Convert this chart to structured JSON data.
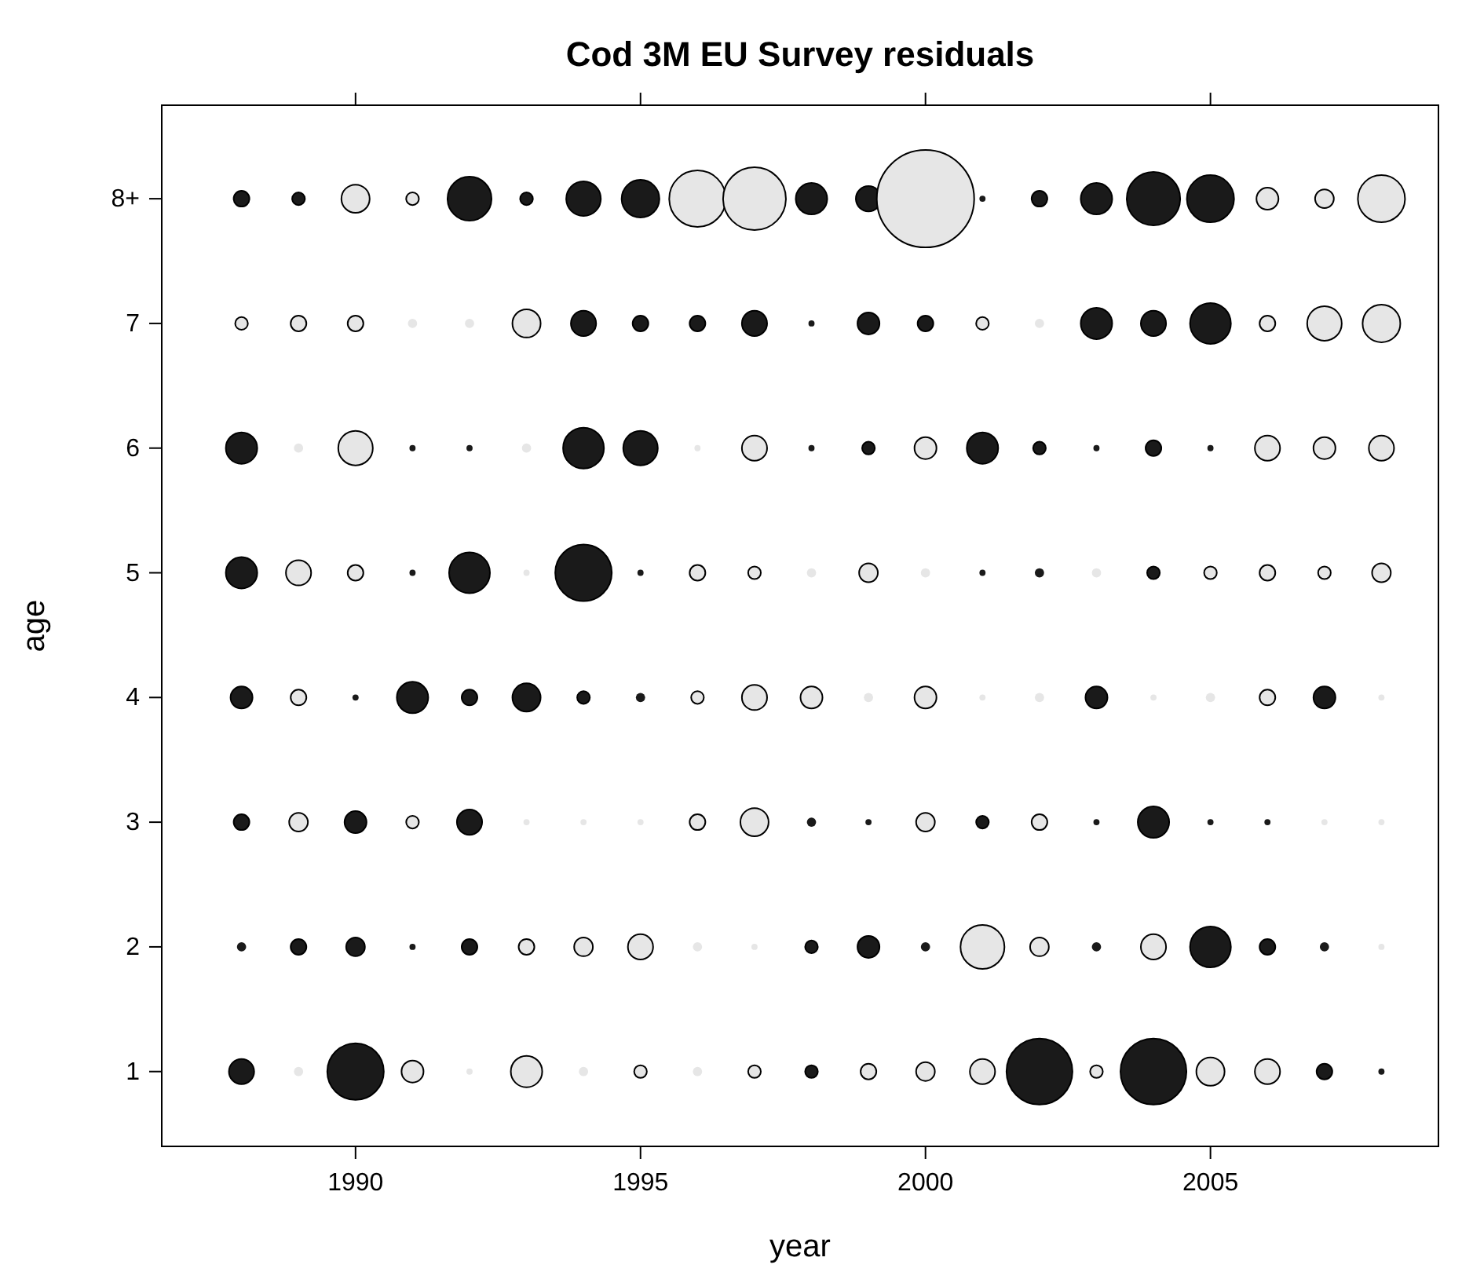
{
  "chart_data": {
    "type": "bubble",
    "title": "Cod 3M EU Survey residuals",
    "xlabel": "year",
    "ylabel": "age",
    "xlim": [
      1986.6,
      2009.0
    ],
    "xticks": [
      1990,
      1995,
      2000,
      2005
    ],
    "ylim": [
      0.4,
      8.75
    ],
    "yticks": [
      1,
      2,
      3,
      4,
      5,
      6,
      7,
      {
        "value": 8,
        "label": "8+"
      }
    ],
    "series": [
      {
        "color": "#1a1a1a",
        "x": [
          1988,
          1989,
          1992,
          1993,
          1994,
          1995,
          1998,
          1999,
          2001,
          2002,
          2003,
          2004,
          2005,
          1994,
          1995,
          1996,
          1997,
          1998,
          1999,
          2000,
          2003,
          2004,
          2005,
          1988,
          1991,
          1992,
          1994,
          1995,
          1998,
          1999,
          2001,
          2002,
          2003,
          2004,
          2005,
          1988,
          1991,
          1992,
          1994,
          1995,
          2001,
          2002,
          2004,
          1988,
          1990,
          1991,
          1992,
          1993,
          1994,
          1995,
          2003,
          2007,
          1988,
          1990,
          1992,
          1998,
          1999,
          2001,
          2003,
          2004,
          2005,
          2006,
          1988,
          1989,
          1990,
          1991,
          1992,
          1998,
          1999,
          2000,
          2003,
          2005,
          2006,
          2007,
          1988,
          1990,
          1998,
          2002,
          2004,
          2007,
          2008
        ],
        "values": [
          8,
          8,
          8,
          8,
          8,
          8,
          8,
          8,
          8,
          8,
          8,
          8,
          8,
          7,
          7,
          7,
          7,
          7,
          7,
          7,
          7,
          7,
          7,
          6,
          6,
          6,
          6,
          6,
          6,
          6,
          6,
          6,
          6,
          6,
          6,
          5,
          5,
          5,
          5,
          5,
          5,
          5,
          5,
          4,
          4,
          4,
          4,
          4,
          4,
          4,
          4,
          4,
          3,
          3,
          3,
          3,
          3,
          3,
          3,
          3,
          3,
          3,
          2,
          2,
          2,
          2,
          2,
          2,
          2,
          2,
          2,
          2,
          2,
          2,
          1,
          1,
          1,
          1,
          1,
          1,
          1
        ],
        "sizes": [
          0.026,
          0.017,
          0.204,
          0.017,
          0.126,
          0.15,
          0.104,
          0.067,
          0.004,
          0.026,
          0.104,
          0.301,
          0.234,
          0.067,
          0.026,
          0.026,
          0.067,
          0.004,
          0.051,
          0.026,
          0.104,
          0.067,
          0.176,
          0.104,
          0.004,
          0.004,
          0.176,
          0.126,
          0.004,
          0.017,
          0.104,
          0.017,
          0.004,
          0.026,
          0.004,
          0.104,
          0.004,
          0.176,
          0.337,
          0.004,
          0.004,
          0.009,
          0.017,
          0.051,
          0.004,
          0.104,
          0.026,
          0.084,
          0.017,
          0.009,
          0.051,
          0.051,
          0.026,
          0.051,
          0.067,
          0.009,
          0.004,
          0.017,
          0.004,
          0.104,
          0.004,
          0.004,
          0.009,
          0.026,
          0.037,
          0.004,
          0.026,
          0.017,
          0.051,
          0.009,
          0.009,
          0.176,
          0.026,
          0.009,
          0.067,
          0.337,
          0.017,
          0.459,
          0.459,
          0.026,
          0.004
        ]
      },
      {
        "color": "#e6e6e6",
        "x": [
          1990,
          1991,
          1996,
          1997,
          2000,
          2006,
          2007,
          2008,
          1988,
          1989,
          1990,
          1991,
          1992,
          1993,
          2001,
          2002,
          2006,
          2007,
          2008,
          1989,
          1990,
          1993,
          1996,
          1997,
          2000,
          2006,
          2007,
          2008,
          1989,
          1990,
          1993,
          1996,
          1997,
          1998,
          1999,
          2000,
          2003,
          2005,
          2006,
          2007,
          2008,
          1989,
          1996,
          1997,
          1998,
          1999,
          2000,
          2001,
          2002,
          2004,
          2005,
          2006,
          2008,
          1989,
          1991,
          1993,
          1994,
          1995,
          1996,
          1997,
          2000,
          2002,
          2007,
          2008,
          1993,
          1994,
          1995,
          1996,
          1997,
          2001,
          2002,
          2004,
          2008,
          1989,
          1991,
          1992,
          1993,
          1994,
          1995,
          1996,
          1997,
          1999,
          2000,
          2001,
          2003,
          2005,
          2006
        ],
        "values": [
          8,
          8,
          8,
          8,
          8,
          8,
          8,
          8,
          7,
          7,
          7,
          7,
          7,
          7,
          7,
          7,
          7,
          7,
          7,
          6,
          6,
          6,
          6,
          6,
          6,
          6,
          6,
          6,
          5,
          5,
          5,
          5,
          5,
          5,
          5,
          5,
          5,
          5,
          5,
          5,
          5,
          4,
          4,
          4,
          4,
          4,
          4,
          4,
          4,
          4,
          4,
          4,
          4,
          3,
          3,
          3,
          3,
          3,
          3,
          3,
          3,
          3,
          3,
          3,
          2,
          2,
          2,
          2,
          2,
          2,
          2,
          2,
          2,
          1,
          1,
          1,
          1,
          1,
          1,
          1,
          1,
          1,
          1,
          1,
          1,
          1,
          1
        ],
        "sizes": [
          0.084,
          0.017,
          0.337,
          0.416,
          1,
          0.051,
          0.037,
          0.234,
          0.017,
          0.026,
          0.026,
          0.009,
          0.009,
          0.084,
          0.017,
          0.009,
          0.026,
          0.126,
          0.15,
          0.009,
          0.126,
          0.009,
          0.004,
          0.067,
          0.051,
          0.067,
          0.051,
          0.067,
          0.067,
          0.026,
          0.004,
          0.026,
          0.017,
          0.009,
          0.037,
          0.009,
          0.009,
          0.017,
          0.026,
          0.017,
          0.037,
          0.026,
          0.017,
          0.067,
          0.051,
          0.009,
          0.051,
          0.004,
          0.009,
          0.004,
          0.009,
          0.026,
          0.004,
          0.037,
          0.017,
          0.004,
          0.004,
          0.004,
          0.026,
          0.084,
          0.037,
          0.026,
          0.004,
          0.004,
          0.026,
          0.037,
          0.067,
          0.009,
          0.004,
          0.204,
          0.037,
          0.067,
          0.004,
          0.009,
          0.051,
          0.004,
          0.104,
          0.009,
          0.017,
          0.009,
          0.017,
          0.026,
          0.037,
          0.067,
          0.017,
          0.084,
          0.067
        ]
      }
    ]
  }
}
